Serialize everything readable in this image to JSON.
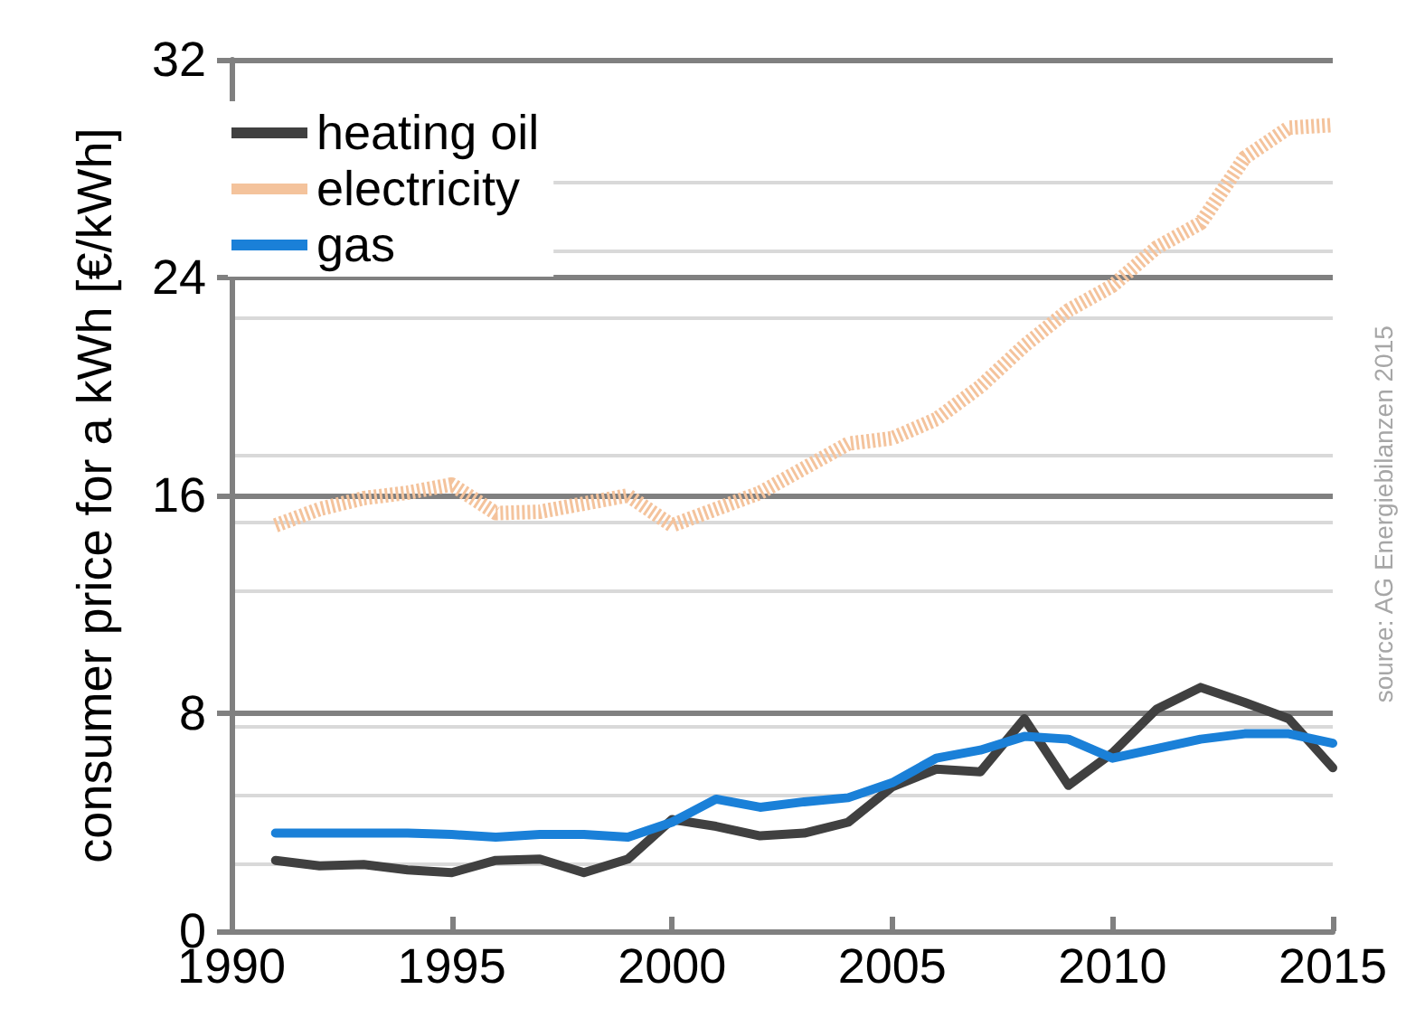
{
  "chart_data": {
    "type": "line",
    "ylabel": "consumer price for a kWh [€/kWh]",
    "x": [
      1991,
      1992,
      1993,
      1994,
      1995,
      1996,
      1997,
      1998,
      1999,
      2000,
      2001,
      2002,
      2003,
      2004,
      2005,
      2006,
      2007,
      2008,
      2009,
      2010,
      2011,
      2012,
      2013,
      2014,
      2015
    ],
    "series": [
      {
        "name": "heating oil",
        "color": "#404040",
        "values": [
          2.6,
          2.4,
          2.45,
          2.25,
          2.15,
          2.6,
          2.65,
          2.15,
          2.65,
          4.1,
          3.85,
          3.5,
          3.6,
          4.0,
          5.3,
          5.95,
          5.85,
          7.8,
          5.35,
          6.55,
          8.15,
          8.95,
          8.4,
          7.8,
          6.0
        ]
      },
      {
        "name": "electricity",
        "color": "#f4c39c",
        "line_style": "dotted",
        "values": [
          14.9,
          15.5,
          15.9,
          16.1,
          16.4,
          15.35,
          15.4,
          15.7,
          16.0,
          14.9,
          15.5,
          16.1,
          17.0,
          17.9,
          18.1,
          18.8,
          20.0,
          21.5,
          22.8,
          23.7,
          25.1,
          26.0,
          28.4,
          29.5,
          29.6
        ]
      },
      {
        "name": "gas",
        "color": "#1a80d8",
        "values": [
          3.6,
          3.6,
          3.6,
          3.6,
          3.55,
          3.45,
          3.55,
          3.55,
          3.45,
          4.0,
          4.85,
          4.55,
          4.75,
          4.9,
          5.45,
          6.35,
          6.65,
          7.15,
          7.05,
          6.35,
          6.7,
          7.05,
          7.25,
          7.25,
          6.9
        ]
      }
    ],
    "xlim": [
      1990,
      2015
    ],
    "xticks": [
      1990,
      1995,
      2000,
      2005,
      2010,
      2015
    ],
    "ylim": [
      0,
      32
    ],
    "yticks": [
      0,
      8,
      16,
      24,
      32
    ],
    "grid": "y",
    "legend": "top left",
    "line_style": "solid",
    "marker": "none",
    "annotations": [
      "source: AG Energiebilanzen 2015"
    ]
  }
}
